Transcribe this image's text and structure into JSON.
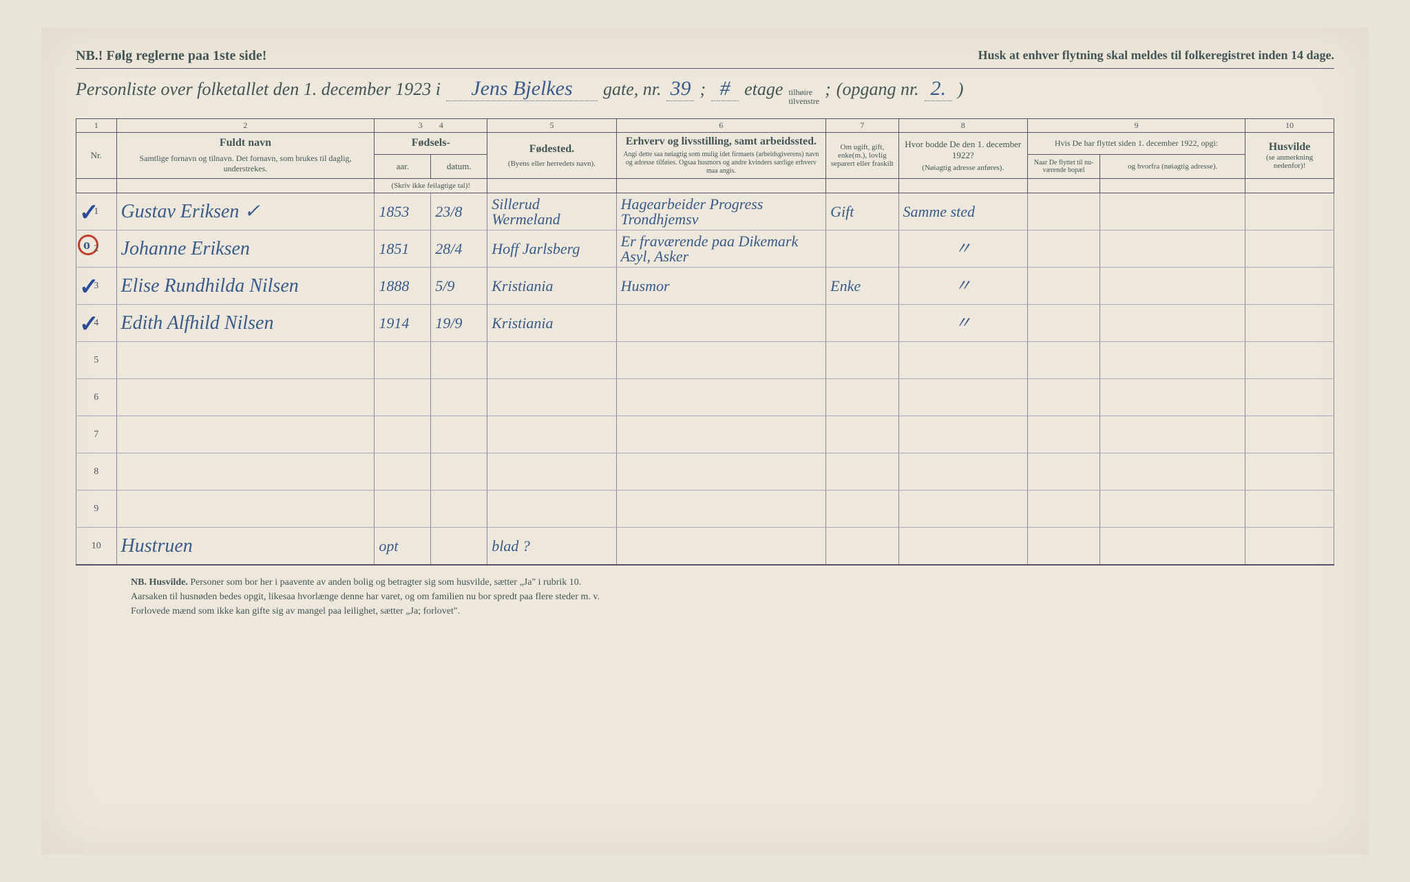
{
  "header": {
    "nb_line": "NB.! Følg reglerne paa 1ste side!",
    "husk_line": "Husk at enhver flytning skal meldes til folkeregistret inden 14 dage.",
    "title_prefix": "Personliste over folketallet den 1. december 1923 i",
    "street": "Jens Bjelkes",
    "gate_label": "gate, nr.",
    "gate_nr": "39",
    "sep1": ";",
    "etage_cross": "#",
    "etage_label": "etage",
    "side_top": "tilhøire",
    "side_bot": "tilvenstre",
    "sep2": ";",
    "opgang_label": "(opgang nr.",
    "opgang_nr": "2.",
    "close_paren": ")"
  },
  "columns": {
    "nums": [
      "1",
      "2",
      "3",
      "4",
      "5",
      "6",
      "7",
      "8",
      "9",
      "10"
    ],
    "nr": "Nr.",
    "fuldt_navn": "Fuldt navn",
    "fuldt_sub": "Samtlige fornavn og tilnavn. Det fornavn, som brukes til daglig, understrekes.",
    "fodsels": "Fødsels-",
    "aar": "aar.",
    "datum": "datum.",
    "fodsels_sub": "(Skriv ikke feilagtige tal)!",
    "fodested": "Fødested.",
    "fodested_sub": "(Byens eller herredets navn).",
    "erhverv": "Erhverv og livsstilling, samt arbeidssted.",
    "erhverv_sub": "Angi dette saa nøiagtig som mulig idet firmaets (arbeidsgiverens) navn og adresse tilføies. Ogsaa husmors og andre kvinders særlige erhverv maa angis.",
    "ugift": "Om ugift, gift, enke(m.), lovlig separert eller fraskilt",
    "hvor_bodde": "Hvor bodde De den 1. december 1922?",
    "hvor_sub": "(Nøiagtig adresse anføres).",
    "col9_top": "Hvis De har flyttet siden 1. december 1922, opgi:",
    "naar": "Naar De flyttet til nu-værende bopæl",
    "hvorfra": "og hvorfra (nøiagtig adresse).",
    "husvilde": "Husvilde",
    "husvilde_sub": "(se anmerkning nedenfor)!"
  },
  "rows": [
    {
      "nr": "1",
      "mark": "check",
      "name": "Gustav Eriksen ✓",
      "year": "1853",
      "date": "23/8",
      "birthplace": "Sillerud Wermeland",
      "occupation": "Hagearbeider Progress Trondhjemsv",
      "status": "Gift",
      "addr1922": "Samme sted"
    },
    {
      "nr": "2",
      "mark": "circle",
      "name": "Johanne Eriksen",
      "year": "1851",
      "date": "28/4",
      "birthplace": "Hoff Jarlsberg",
      "occupation": "Er fraværende paa Dikemark Asyl, Asker",
      "status": "",
      "addr1922": "\""
    },
    {
      "nr": "3",
      "mark": "check",
      "name": "Elise Rundhilda Nilsen",
      "year": "1888",
      "date": "5/9",
      "birthplace": "Kristiania",
      "occupation": "Husmor",
      "status": "Enke",
      "addr1922": "\""
    },
    {
      "nr": "4",
      "mark": "check",
      "name": "Edith Alfhild Nilsen",
      "year": "1914",
      "date": "19/9",
      "birthplace": "Kristiania",
      "occupation": "",
      "status": "",
      "addr1922": "\""
    },
    {
      "nr": "5",
      "mark": "",
      "name": "",
      "year": "",
      "date": "",
      "birthplace": "",
      "occupation": "",
      "status": "",
      "addr1922": ""
    },
    {
      "nr": "6",
      "mark": "",
      "name": "",
      "year": "",
      "date": "",
      "birthplace": "",
      "occupation": "",
      "status": "",
      "addr1922": ""
    },
    {
      "nr": "7",
      "mark": "",
      "name": "",
      "year": "",
      "date": "",
      "birthplace": "",
      "occupation": "",
      "status": "",
      "addr1922": ""
    },
    {
      "nr": "8",
      "mark": "",
      "name": "",
      "year": "",
      "date": "",
      "birthplace": "",
      "occupation": "",
      "status": "",
      "addr1922": ""
    },
    {
      "nr": "9",
      "mark": "",
      "name": "",
      "year": "",
      "date": "",
      "birthplace": "",
      "occupation": "",
      "status": "",
      "addr1922": ""
    },
    {
      "nr": "10",
      "mark": "",
      "name": "Hustruen",
      "year": "opt",
      "date": "",
      "birthplace": "blad ?",
      "occupation": "",
      "status": "",
      "addr1922": ""
    }
  ],
  "footer": {
    "line1_bold": "NB. Husvilde.",
    "line1": "Personer som bor her i paavente av anden bolig og betragter sig som husvilde, sætter „Ja\" i rubrik 10.",
    "line2": "Aarsaken til husnøden bedes opgit, likesaa hvorlænge denne har varet, og om familien nu bor spredt paa flere steder m. v.",
    "line3": "Forlovede mænd som ikke kan gifte sig av mangel paa leilighet, sætter „Ja; forlovet\"."
  },
  "styling": {
    "paper_bg": "#ede8db",
    "print_color": "#455",
    "handwriting_color": "#3a5a8a",
    "red_mark": "#c04030",
    "border_color": "#556"
  }
}
